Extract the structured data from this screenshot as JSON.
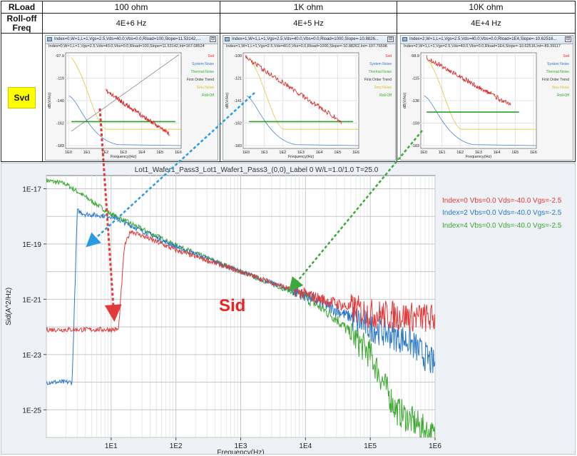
{
  "table": {
    "header_rload": "RLoad",
    "header_rolloff": "Roll-off Freq",
    "row_label": "Svd",
    "columns": [
      {
        "rload": "100 ohm",
        "rolloff": "4E+6 Hz",
        "title": "Index=0,W=1,L=1,Vgs=2.5,Vds=40.0,Vbs=0.0,Rload=100,Slope=11.53142,...",
        "subtitle": "Index=0,W=1,L=1,Vgs=2.5,Vds=40.0,Vbs=0.0,Rload=100,Slope=11.53142,Int=167.08524",
        "yticks": [
          "-97.9",
          "-119",
          "-140",
          "-162",
          "-183"
        ]
      },
      {
        "rload": "1K ohm",
        "rolloff": "4E+5 Hz",
        "title": "Index=1,W=1,L=1,Vgs=2.5,Vds=40.0,Vbs=0.0,Rload=1000,Slope=-10.8826...",
        "subtitle": "Index=1,W=1,L=1,Vgs=2.5,Vds=40.0,Vbs=0.0,Rload=1000,Slope=-10.88262,Int=-107.76598",
        "yticks": [
          "-100",
          "-121",
          "-141",
          "-162",
          "-183"
        ]
      },
      {
        "rload": "10K ohm",
        "rolloff": "4E+4 Hz",
        "title": "Index=2,W=1,L=1,Vgs=2.5,Vds=40.0,Vbs=0.0,Rload=1E4,Slope=-10.62516...",
        "subtitle": "Index=2,W=1,L=1,Vgs=2.5,Vds=40.0,Vbs=0.0,Rload=1E4,Slope=-10.62516,Int=-89.39117",
        "yticks": [
          "-98.9",
          "-115",
          "-136",
          "-159",
          "-183"
        ]
      }
    ],
    "mini_ylabel": "dB(V/Hz)",
    "mini_xlabel": "Frequency(Hz)",
    "mini_xticks": [
      "1E0",
      "1E1",
      "1E2",
      "1E3",
      "1E4",
      "1E5",
      "1E6"
    ],
    "mini_legend": [
      "Svd",
      "System Noise",
      "Thermal Noise",
      "First Order Trend",
      "Smu Noise",
      "Roll-Off"
    ],
    "mini_legend_colors": [
      "#dd2222",
      "#3377cc",
      "#33aa33",
      "#333333",
      "#ddbb22",
      "#22aa22"
    ]
  },
  "chart_data": {
    "type": "line",
    "title": "Lot1_Wafer1_Pass3_Lot1_Wafer1_Pass3_(0,0)_Label 0 W/L=1.0/1.0 T=25.0",
    "xlabel": "Frequency(Hz)",
    "ylabel": "Sid(A^2/Hz)",
    "x_scale": "log",
    "y_scale": "log",
    "xlim": [
      1,
      1000000
    ],
    "ylim": [
      1e-26,
      3e-17
    ],
    "xticks": [
      "1E1",
      "1E2",
      "1E3",
      "1E4",
      "1E5",
      "1E6"
    ],
    "yticks": [
      "1E-17",
      "1E-19",
      "1E-21",
      "1E-23",
      "1E-25"
    ],
    "annotation": "Sid",
    "series": [
      {
        "name": "Index=0  Vbs=0.0  Vds=-40.0  Vgs=-2.5",
        "color": "#e23a3a",
        "x": [
          1,
          13,
          16,
          20,
          100,
          1000,
          10000,
          100000,
          1000000
        ],
        "y": [
          8e-23,
          8e-23,
          8e-20,
          3e-19,
          6e-20,
          1e-20,
          1.5e-21,
          3e-22,
          2e-22
        ]
      },
      {
        "name": "Index=2  Vbs=0.0  Vds=-40.0  Vgs=-2.5",
        "color": "#2a78c8",
        "x": [
          1,
          2.5,
          3,
          4,
          10,
          100,
          1000,
          10000,
          100000,
          400000,
          1000000
        ],
        "y": [
          1e-24,
          1e-24,
          1.6e-18,
          1.2e-18,
          1e-18,
          8e-20,
          1e-20,
          1.4e-21,
          1e-22,
          3e-23,
          4e-24
        ]
      },
      {
        "name": "Index=4  Vbs=0.0  Vds=-40.0  Vgs=-2.5",
        "color": "#3aa82e",
        "x": [
          1,
          2,
          10,
          100,
          1000,
          10000,
          30000,
          100000,
          250000,
          1000000
        ],
        "y": [
          2e-17,
          1.5e-17,
          1.2e-18,
          9e-20,
          1e-20,
          1.2e-21,
          2e-22,
          1e-23,
          1e-25,
          1e-26
        ]
      }
    ]
  },
  "arrow_colors": [
    "#e23a3a",
    "#2a9be0",
    "#3aaa3a"
  ]
}
